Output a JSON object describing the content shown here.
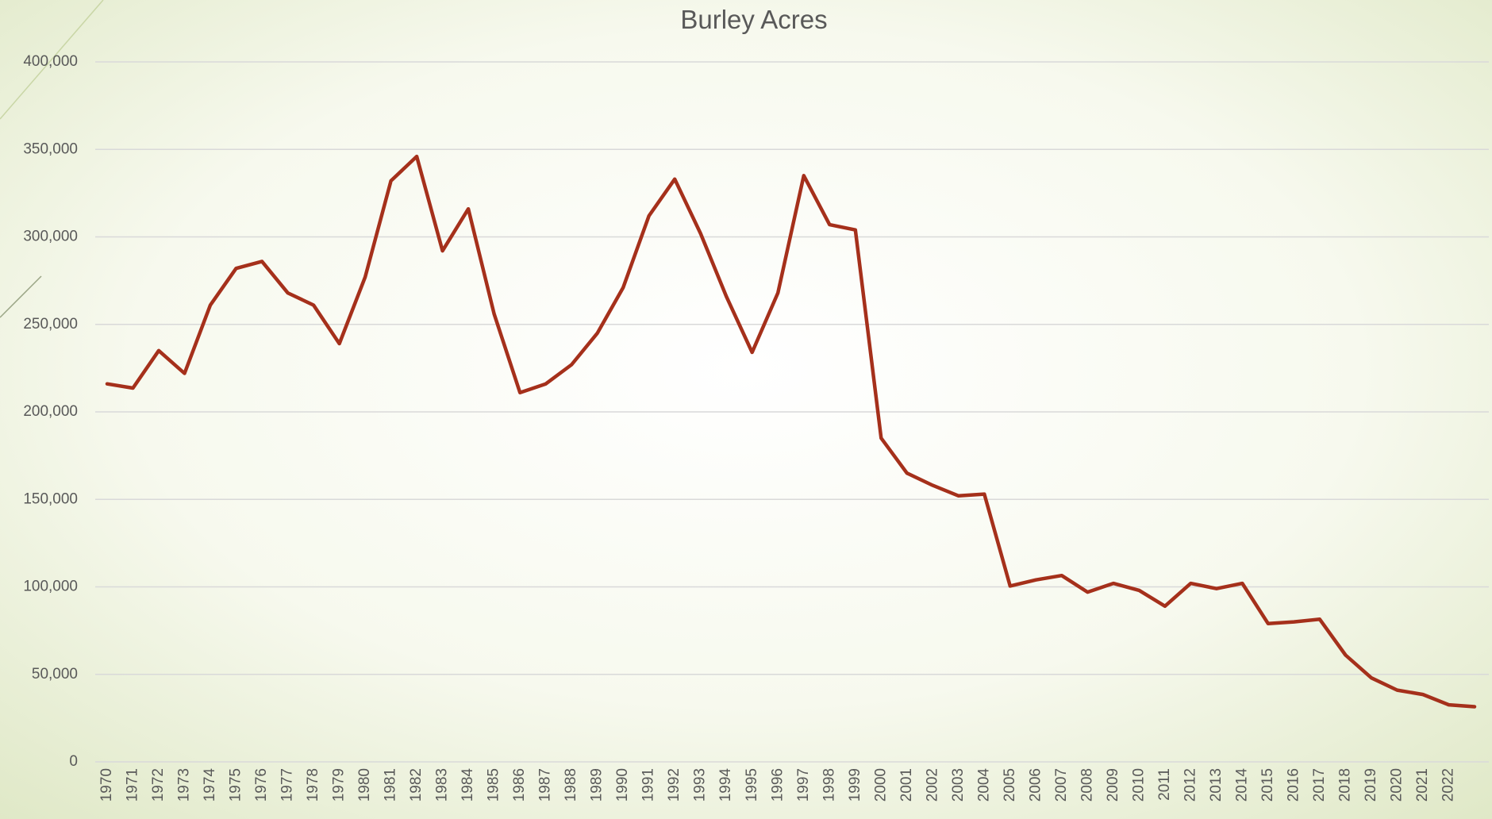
{
  "chart_data": {
    "type": "line",
    "title": "Burley Acres",
    "categories": [
      "1970",
      "1971",
      "1972",
      "1973",
      "1974",
      "1975",
      "1976",
      "1977",
      "1978",
      "1979",
      "1980",
      "1981",
      "1982",
      "1983",
      "1984",
      "1985",
      "1986",
      "1987",
      "1988",
      "1989",
      "1990",
      "1991",
      "1992",
      "1993",
      "1994",
      "1995",
      "1996",
      "1997",
      "1998",
      "1999",
      "2000",
      "2001",
      "2002",
      "2003",
      "2004",
      "2005",
      "2006",
      "2007",
      "2008",
      "2009",
      "2010",
      "2011",
      "2012",
      "2013",
      "2014",
      "2015",
      "2016",
      "2017",
      "2018",
      "2019",
      "2020",
      "2021",
      "2022",
      null
    ],
    "series": [
      {
        "name": "Burley Acres",
        "color": "#a5301b",
        "values": [
          216000,
          213600,
          235000,
          222000,
          261000,
          282000,
          286000,
          268000,
          261000,
          239000,
          277000,
          332000,
          346000,
          292000,
          316000,
          256000,
          211000,
          216000,
          227000,
          245000,
          271000,
          312000,
          333000,
          302000,
          266000,
          234000,
          268000,
          335000,
          307000,
          304000,
          185000,
          165000,
          158000,
          152000,
          153000,
          100500,
          104000,
          106500,
          97000,
          102000,
          98000,
          89000,
          102000,
          99000,
          102000,
          79000,
          80000,
          81500,
          61000,
          48000,
          41000,
          38500,
          32600,
          31500
        ]
      }
    ],
    "ylim": [
      0,
      400000
    ],
    "yticks": [
      0,
      {
        "value": 50000,
        "label": "50,000"
      },
      {
        "value": 100000,
        "label": "100,000"
      },
      {
        "value": 150000,
        "label": "150,000"
      },
      {
        "value": 200000,
        "label": "200,000"
      },
      {
        "value": 250000,
        "label": "250,000"
      },
      {
        "value": 300000,
        "label": "300,000"
      },
      {
        "value": 350000,
        "label": "350,000"
      },
      {
        "value": 400000,
        "label": "400,000"
      }
    ],
    "grid": true
  }
}
